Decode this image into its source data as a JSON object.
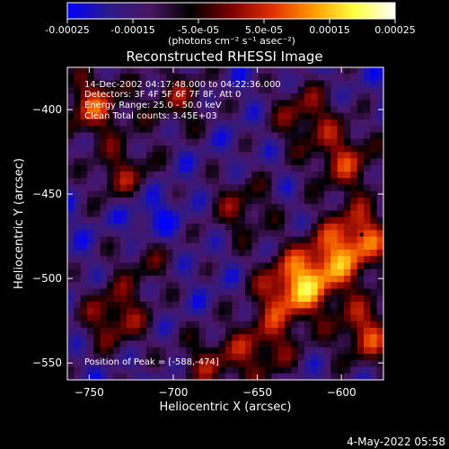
{
  "colorbar": {
    "colors": [
      "#0000ff",
      "#2b1a8a",
      "#4a1565",
      "#000000",
      "#7a0000",
      "#e03000",
      "#ff9900",
      "#ffff40",
      "#ffffff"
    ],
    "tick_labels": [
      "-0.00025",
      "-0.00015",
      "-5.0e-05",
      "5.0e-05",
      "0.00015",
      "0.00025"
    ],
    "unit_label": "(photons cm⁻² s⁻¹ asec⁻²)"
  },
  "plot": {
    "title": "Reconstructed RHESSI Image",
    "info_lines": [
      "14-Dec-2002 04:17:48.000 to 04:22:36.000",
      "Detectors: 3F 4F 5F 6F 7F 8F, Att 0",
      "Energy Range: 25.0 - 50.0 keV",
      "Clean    Total counts: 3.45E+03"
    ],
    "peak_text": "Position of Peak = [-588,-474]"
  },
  "chart_data": {
    "type": "heatmap",
    "title": "Reconstructed RHESSI Image",
    "xlabel": "Heliocentric X (arcsec)",
    "ylabel": "Heliocentric Y (arcsec)",
    "xlim": [
      -763,
      -575
    ],
    "ylim": [
      -560,
      -375
    ],
    "x_ticks": [
      -750,
      -700,
      -650,
      -600
    ],
    "y_ticks": [
      -400,
      -450,
      -500,
      -550
    ],
    "colorbar_range": [
      -0.00025,
      0.00025
    ],
    "peak_position": [
      -588,
      -474
    ],
    "grid": false
  },
  "footer": {
    "timestamp": "4-May-2022 05:58"
  }
}
